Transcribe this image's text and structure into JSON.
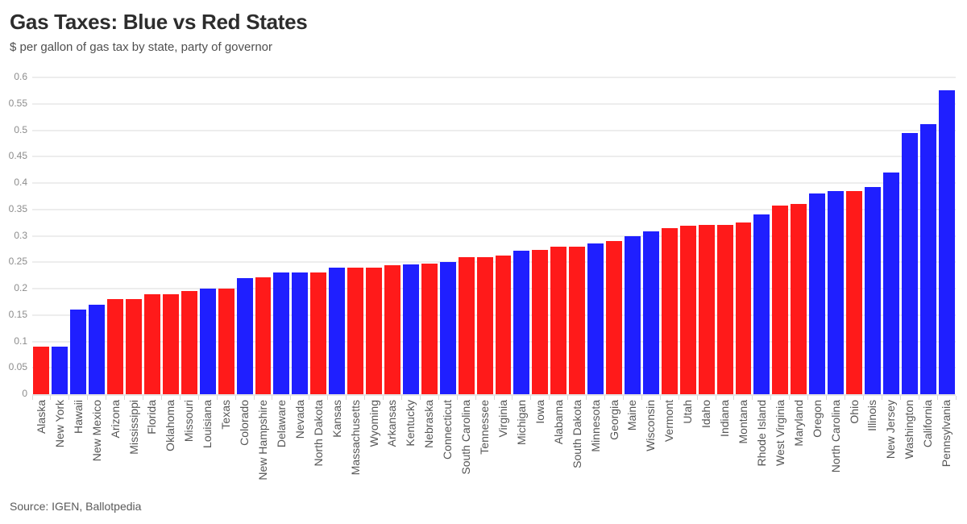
{
  "header": {
    "title": "Gas Taxes: Blue vs Red States",
    "subtitle": "$ per gallon of gas tax by state, party of governor"
  },
  "footer": {
    "source": "Source: IGEN, Ballotpedia"
  },
  "colors": {
    "democrat_blue": "#1f1fff",
    "republican_red": "#ff1a1a",
    "gridline": "#ededed",
    "baseline": "#e4e4e4",
    "y_tick_label": "#8c8c8c",
    "x_tick_label": "#555555",
    "title_text": "#2d2d2d",
    "background": "#ffffff"
  },
  "chart_data": {
    "type": "bar",
    "title": "Gas Taxes: Blue vs Red States",
    "subtitle": "$ per gallon of gas tax by state, party of governor",
    "xlabel": "",
    "ylabel": "",
    "ylim": [
      0,
      0.6
    ],
    "grid": "horizontal",
    "legend": "none",
    "sort": "ascending by value",
    "color_encoding": "party of governor: D = blue, R = red",
    "ytick_values": [
      0,
      0.05,
      0.1,
      0.15,
      0.2,
      0.25,
      0.3,
      0.35,
      0.4,
      0.45,
      0.5,
      0.55,
      0.6
    ],
    "ytick_labels": [
      "0",
      "0.05",
      "0.1",
      "0.15",
      "0.2",
      "0.25",
      "0.3",
      "0.35",
      "0.4",
      "0.45",
      "0.5",
      "0.55",
      "0.6"
    ],
    "categories": [
      "Alaska",
      "New York",
      "Hawaii",
      "New Mexico",
      "Arizona",
      "Mississippi",
      "Florida",
      "Oklahoma",
      "Missouri",
      "Louisiana",
      "Texas",
      "Colorado",
      "New Hampshire",
      "Delaware",
      "Nevada",
      "North Dakota",
      "Kansas",
      "Massachusetts",
      "Wyoming",
      "Arkansas",
      "Kentucky",
      "Nebraska",
      "Connecticut",
      "South Carolina",
      "Tennessee",
      "Virginia",
      "Michigan",
      "Iowa",
      "Alabama",
      "South Dakota",
      "Minnesota",
      "Georgia",
      "Maine",
      "Wisconsin",
      "Vermont",
      "Utah",
      "Idaho",
      "Indiana",
      "Montana",
      "Rhode Island",
      "West Virginia",
      "Maryland",
      "Oregon",
      "North Carolina",
      "Ohio",
      "Illinois",
      "New Jersey",
      "Washington",
      "California",
      "Pennsylvania"
    ],
    "values": [
      0.09,
      0.09,
      0.16,
      0.17,
      0.18,
      0.18,
      0.19,
      0.19,
      0.195,
      0.2,
      0.2,
      0.22,
      0.222,
      0.23,
      0.23,
      0.23,
      0.24,
      0.24,
      0.24,
      0.245,
      0.246,
      0.248,
      0.25,
      0.26,
      0.26,
      0.262,
      0.272,
      0.273,
      0.28,
      0.28,
      0.285,
      0.29,
      0.3,
      0.309,
      0.315,
      0.319,
      0.32,
      0.32,
      0.325,
      0.34,
      0.357,
      0.361,
      0.38,
      0.385,
      0.385,
      0.392,
      0.42,
      0.494,
      0.511,
      0.576
    ],
    "party": [
      "R",
      "D",
      "D",
      "D",
      "R",
      "R",
      "R",
      "R",
      "R",
      "D",
      "R",
      "D",
      "R",
      "D",
      "D",
      "R",
      "D",
      "R",
      "R",
      "R",
      "D",
      "R",
      "D",
      "R",
      "R",
      "R",
      "D",
      "R",
      "R",
      "R",
      "D",
      "R",
      "D",
      "D",
      "R",
      "R",
      "R",
      "R",
      "R",
      "D",
      "R",
      "R",
      "D",
      "D",
      "R",
      "D",
      "D",
      "D",
      "D",
      "D"
    ],
    "party_colors": {
      "D": "#1f1fff",
      "R": "#ff1a1a"
    }
  }
}
